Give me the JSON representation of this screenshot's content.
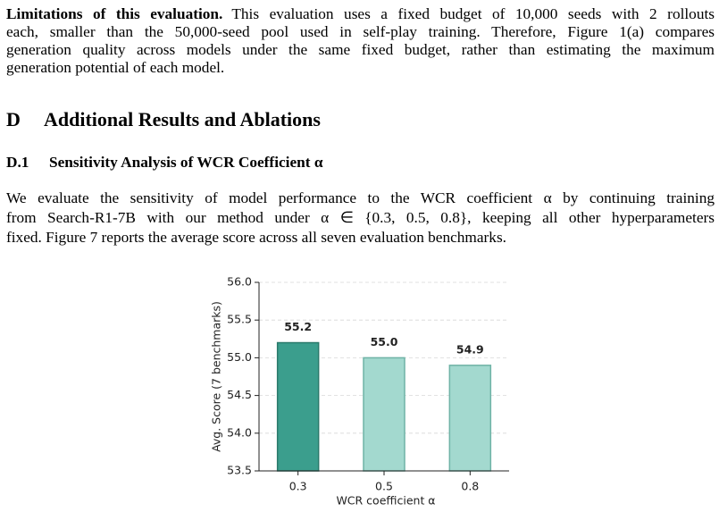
{
  "paragraphs": [
    {
      "lead": "Limitations of this evaluation.",
      "lines": [
        "This evaluation uses a fixed budget of 10,000 seeds with 2 rollouts",
        "each, smaller than the 50,000-seed pool used in self-play training. Therefore, Figure 1(a) compares",
        "generation quality across models under the same fixed budget, rather than estimating the maximum",
        "generation potential of each model."
      ]
    },
    {
      "lines": [
        "We evaluate the sensitivity of model performance to the WCR coefficient α by continuing training",
        "from Search-R1-7B with our method under α ∈ {0.3, 0.5, 0.8}, keeping all other hyperparameters",
        "fixed. Figure 7 reports the average score across all seven evaluation benchmarks."
      ]
    }
  ],
  "section": {
    "label": "D",
    "title": "Additional Results and Ablations"
  },
  "subsection": {
    "label": "D.1",
    "title": "Sensitivity Analysis of WCR Coefficient α"
  },
  "chart_data": {
    "type": "bar",
    "categories": [
      "0.3",
      "0.5",
      "0.8"
    ],
    "values": [
      55.2,
      55.0,
      54.9
    ],
    "value_labels": [
      "55.2",
      "55.0",
      "54.9"
    ],
    "colors": [
      "#3b9e8d",
      "#a3d9cf",
      "#a3d9cf"
    ],
    "edge_colors": [
      "#2a7a6b",
      "#6fb3a6",
      "#6fb3a6"
    ],
    "xlabel": "WCR coefficient α",
    "ylabel": "Avg. Score (7 benchmarks)",
    "ylim": [
      53.5,
      56.0
    ],
    "yticks": [
      53.5,
      {
        "value": 54,
        "label": "54.0"
      },
      54.5,
      {
        "value": 55,
        "label": "55.0"
      },
      55.5,
      {
        "value": 56,
        "label": "56.0"
      }
    ],
    "grid": true
  }
}
